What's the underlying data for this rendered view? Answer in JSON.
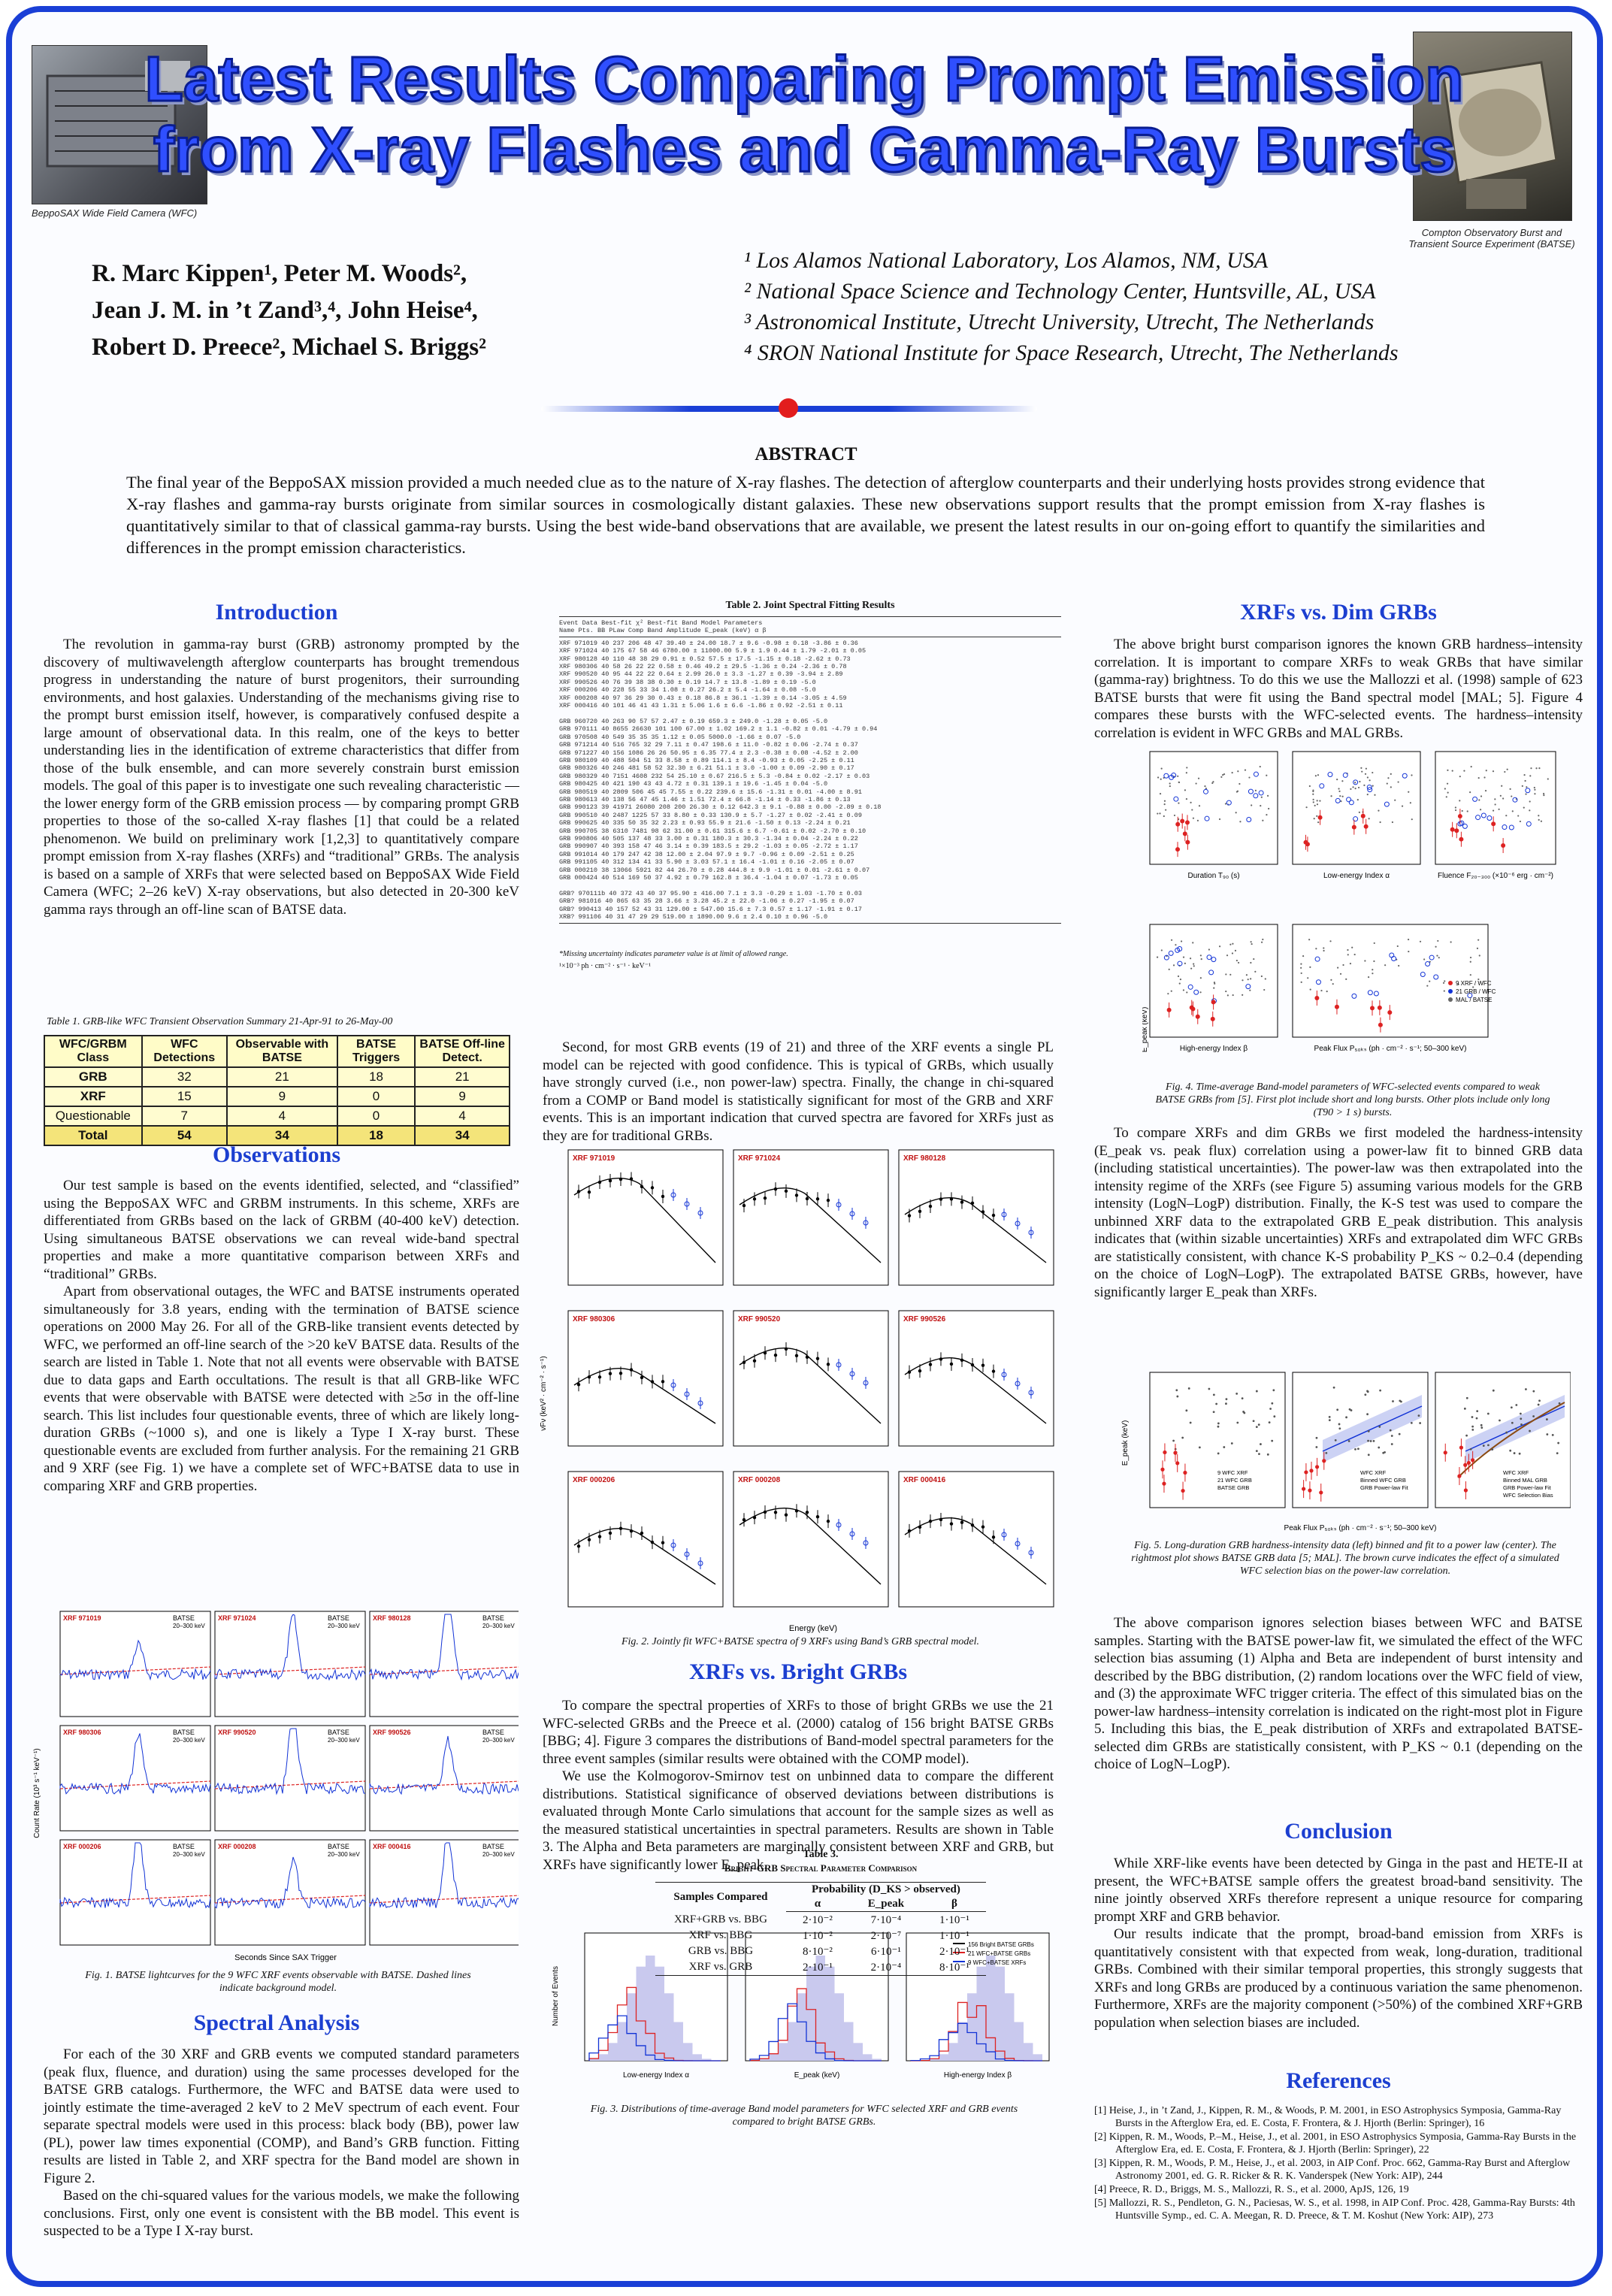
{
  "title": {
    "line1": "Latest Results Comparing Prompt Emission",
    "line2": "from X-ray Flashes and Gamma-Ray Bursts"
  },
  "photos": {
    "left_caption_em": "Beppo",
    "left_caption": "SAX Wide Field Camera (WFC)",
    "right_caption_em": "Compton",
    "right_caption": " Observatory Burst and Transient Source Experiment (BATSE)"
  },
  "authors": {
    "line1": "R. Marc Kippen¹,  Peter M. Woods²,",
    "line2": "Jean J. M. in ’t Zand³,⁴,  John Heise⁴,",
    "line3": "Robert D. Preece²,  Michael S. Briggs²"
  },
  "affiliations": [
    "¹ Los Alamos National Laboratory, Los Alamos, NM, USA",
    "² National Space Science and Technology Center, Huntsville, AL, USA",
    "³ Astronomical Institute, Utrecht University, Utrecht, The Netherlands",
    "⁴ SRON National Institute for Space Research, Utrecht, The Netherlands"
  ],
  "abstract": {
    "heading": "ABSTRACT",
    "text": "The final year of the BeppoSAX mission provided a much needed clue as to the nature of X-ray flashes.  The detection of afterglow counterparts and their underlying hosts provides strong evidence that X-ray flashes and gamma-ray bursts originate from similar sources in cosmologically distant galaxies.  These new observations support results that the prompt emission from X-ray flashes is quantitatively similar to that of classical gamma-ray bursts.  Using the best wide-band observations that are available, we present the latest results in our on-going effort to quantify the similarities and differences in the prompt emission characteristics."
  },
  "introduction": {
    "heading": "Introduction",
    "text": "The revolution in gamma-ray burst (GRB) astronomy prompted by the discovery of multiwavelength afterglow counterparts has brought tremendous progress in understanding the nature of burst progenitors, their surrounding environments, and host galaxies.   Understanding of the mechanisms giving rise to the prompt burst emission itself, however, is comparatively confused despite a large amount of observational data.  In this realm, one of the keys to better understanding lies in the identification of extreme characteristics that differ from those of the bulk ensemble, and can more severely constrain burst emission models.  The goal of this paper is to investigate one such revealing characteristic — the lower energy form of the GRB emission process — by comparing prompt GRB properties to those of the so-called X-ray flashes [1] that could be a related phenomenon. We build on preliminary work [1,2,3] to quantitatively compare prompt emission from X-ray flashes (XRFs) and “traditional” GRBs.  The analysis is based on a sample of XRFs that were selected based on BeppoSAX Wide Field Camera (WFC; 2–26 keV) X-ray observations, but also detected in 20-300 keV gamma rays through an off-line scan of BATSE data."
  },
  "table1": {
    "caption": "Table 1.  GRB-like WFC Transient Observation Summary 21-Apr-91 to 26-May-00",
    "headers": [
      "WFC/GRBM Class",
      "WFC Detections",
      "Observable with BATSE",
      "BATSE Triggers",
      "BATSE Off-line Detect."
    ],
    "rows": [
      [
        "GRB",
        "32",
        "21",
        "18",
        "21"
      ],
      [
        "XRF",
        "15",
        "9",
        "0",
        "9"
      ],
      [
        "Questionable",
        "7",
        "4",
        "0",
        "4"
      ]
    ],
    "total": [
      "Total",
      "54",
      "34",
      "18",
      "34"
    ]
  },
  "observations": {
    "heading": "Observations",
    "p1": "Our test sample is based on the events identified, selected, and “classified” using the BeppoSAX WFC and GRBM instruments.  In this scheme, XRFs are differentiated from GRBs based on the lack of GRBM (40-400 keV) detection.  Using simultaneous BATSE observations we can reveal wide-band spectral properties and make a more quantitative comparison between XRFs and “traditional” GRBs.",
    "p2": "Apart from observational outages, the WFC and BATSE instruments operated simultaneously for 3.8 years, ending with the termination of BATSE science operations on 2000 May 26.  For all of the GRB-like transient events detected by WFC, we performed an off-line search of the >20 keV BATSE data.  Results of the search are listed in Table 1.  Note that not all events were observable with BATSE due to data gaps and Earth occultations.   The result is that all GRB-like WFC events that were observable with BATSE were detected with ≥5σ in the off-line search.  This list includes four questionable events, three of which are likely long-duration GRBs (~1000 s), and one is likely a Type I X-ray burst.  These questionable events are excluded from further analysis.  For the remaining 21 GRB and 9 XRF (see Fig. 1) we have a complete set of WFC+BATSE data to use in comparing XRF and GRB properties."
  },
  "fig1": {
    "events": [
      "XRF 971019",
      "XRF 971024",
      "XRF 980128",
      "XRF 980306",
      "XRF 990520",
      "XRF 990526",
      "XRF 000206",
      "XRF 000208",
      "XRF 000416"
    ],
    "batse": "BATSE",
    "band": "20–300 keV",
    "ylabel": "Count Rate (10³ s⁻¹ keV⁻¹)",
    "xlabel": "Seconds Since SAX Trigger",
    "caption": "Fig. 1.  BATSE lightcurves for the 9 WFC XRF events observable with BATSE. Dashed lines indicate background model."
  },
  "spectral": {
    "heading": "Spectral Analysis",
    "p1": "For each of the 30 XRF and GRB events we computed standard parameters (peak flux, fluence, and duration) using the same processes developed for the BATSE GRB catalogs.  Furthermore, the WFC and BATSE data were used to jointly estimate the time-averaged 2 keV to 2 MeV spectrum of each event.  Four separate spectral models were used in this process:  black body (BB), power law (PL), power law times exponential (COMP), and Band’s GRB function.  Fitting results are listed in Table 2, and XRF spectra for the Band model are shown in Figure 2.",
    "p2": "Based on the chi-squared values for the various models, we make the following conclusions.  First, only one event is consistent with the BB model.  This event is suspected to be a Type I X-ray burst."
  },
  "table2": {
    "title": "Table 2.  Joint Spectral Fitting Results",
    "header1": "Event   Data        Best-fit χ²            Best-fit Band Model Parameters",
    "header2": "Name    Pts.   BB   PLaw  Comp  Band   Amplitude    E_peak (keV)      α          β",
    "rows": [
      "XRF 971019   40   237   206    48    47    39.40 ±  24.00    18.7 ±   9.6   -0.98 ± 0.18   -3.86 ± 0.36",
      "XRF 971024   40   175    67    58    46   6780.00 ± 11000.00  5.9 ±   1.9    0.44 ± 1.79   -2.01 ± 0.05",
      "XRF 980128   40   110    48    38    29     0.91 ±   0.52    57.5 ±  17.5   -1.15 ± 0.18   -2.62 ± 0.73",
      "XRF 980306   40    58    26    22    22     0.58 ±   0.46    49.2 ±  29.5   -1.36 ± 0.24   -2.36 ± 0.78",
      "XRF 990520   40    95    44    22    22     0.64 ±   2.99    26.0 ±   3.3   -1.27 ± 0.39   -3.94 ± 2.89",
      "XRF 990526   40    76    39    38    38     0.30 ±   0.19    14.7 ±  13.8   -1.89 ± 0.19     -5.0",
      "XRF 000206   40   228    55    33    34     1.08 ±   0.27    26.2 ±   5.4   -1.64 ± 0.08     -5.0",
      "XRF 000208   40    97    36    29    30     0.43 ±   0.18    86.8 ±  36.1   -1.39 ± 0.14   -3.05 ± 4.59",
      "XRF 000416   40   101    46    41    43     1.31 ±   5.06     1.6 ±   6.6   -1.86 ± 0.92   -2.51 ± 0.11",
      "",
      "GRB 960720   40   263    90    57    57     2.47 ±   0.19   659.3 ± 249.0   -1.28 ± 0.05     -5.0",
      "GRB 970111   40  8655 26630   101   100    67.00 ±   1.02   169.2 ±   1.1   -0.82 ± 0.01   -4.79 ± 0.94",
      "GRB 970508   40   549    35    35    35     1.12 ±   0.05   5000.0           -1.66 ± 0.07     -5.0",
      "GRB 971214   40   516    765    32    29     7.11 ±   0.47   198.6 ±  11.0   -0.82 ± 0.06   -2.74 ± 0.37",
      "GRB 971227   40   156    1086    26    26    50.95 ±   6.35    77.4 ±   2.3   -0.38 ± 0.08   -4.52 ± 2.00",
      "GRB 980109   40   488    504    51    33     8.58 ±   0.89   114.1 ±   8.4   -0.93 ± 0.05   -2.25 ± 0.11",
      "GRB 980326   40   246    481    58    52    32.30 ±   6.21    51.1 ±   3.0   -1.00 ± 0.09   -2.90 ± 0.17",
      "GRB 980329   40  7151   4608   232    54    25.10 ±   0.67   216.5 ±   5.3   -0.84 ± 0.02   -2.17 ± 0.03",
      "GRB 980425   40   421    190    43    43     4.72 ±   0.31   139.1 ±  19.6   -1.45 ± 0.04     -5.0",
      "GRB 980519   40  2809    506    45    45     7.55 ±   0.22   239.6 ±  15.6   -1.31 ± 0.01   -4.00 ± 8.91",
      "GRB 980613   40   138     56    47    45     1.46 ±   1.51    72.4 ±  66.8   -1.14 ± 0.33   -1.86 ± 0.13",
      "GRB 990123   39 41971  26080   208   200    26.30 ±   0.12   642.3 ±   9.1   -0.88 ± 0.00   -2.89 ± 0.18",
      "GRB 990510   40  2487   1225    57    33     8.80 ±   0.33   130.9 ±   5.7   -1.27 ± 0.02   -2.41 ± 0.09",
      "GRB 990625   40   335     50    35    32     2.23 ±   0.93    55.9 ±  21.6   -1.50 ± 0.13   -2.24 ± 0.21",
      "GRB 990705   38  6310   7481    98    62    31.00 ±   0.61   315.6 ±   6.7   -0.61 ± 0.02   -2.70 ± 0.10",
      "GRB 990806   40   505    137    48    33     3.00 ±   0.31   180.3 ±  30.3   -1.34 ± 0.04   -2.24 ± 0.22",
      "GRB 990907   40   393    158    47    46     3.14 ±   0.39   183.5 ±  29.2   -1.03 ± 0.05   -2.72 ± 1.17",
      "GRB 991014   40   179    247    42    38    12.00 ±   2.04    97.9 ±   9.7   -0.96 ± 0.09   -2.51 ± 0.25",
      "GRB 991105   40   312    134    41    33     5.90 ±   3.03    57.1 ±  16.4   -1.01 ± 0.16   -2.05 ± 0.07",
      "GRB 000210   38 13066   5921    82    44    26.70 ±   0.28   444.8 ±   9.9   -1.01 ± 0.01   -2.61 ± 0.07",
      "GRB 000424   40   514    169    50    37     4.92 ±   0.79   162.8 ±  36.4   -1.04 ± 0.07   -1.73 ± 0.05",
      "",
      "GRB? 970111b  40   372    43    40    37    95.90 ± 416.00     7.1 ±   3.3   -0.29 ± 1.03   -1.70 ± 0.03",
      "GRB? 981016   40   865    63    35    28     3.66 ±   3.28    45.2 ±  22.0   -1.06 ± 0.27   -1.95 ± 0.07",
      "GRB? 990413   40   157    52    43    31   129.00 ± 547.00    15.6 ±   7.3    0.57 ± 1.17   -1.91 ± 0.17",
      "XRB? 991106   40    31    47    29    29   519.00 ± 1890.00     9.6 ±   2.4    0.10 ± 0.96     -5.0"
    ],
    "note1": "*Missing uncertainty indicates parameter value is at limit of allowed range.",
    "note2": "¹×10⁻³ ph · cm⁻² · s⁻¹ · keV⁻¹"
  },
  "middle_text": {
    "p1": "Second, for most GRB events (19 of 21) and three of the XRF events a single PL model can be rejected with good confidence.  This is typical of GRBs, which usually have strongly curved (i.e., non power-law) spectra.  Finally, the change in chi-squared from a COMP or Band model is statistically significant for most of the GRB and XRF events.  This is an important indication that curved spectra are favored for XRFs just as they are for traditional GRBs."
  },
  "fig2": {
    "events": [
      "XRF 971019",
      "XRF 971024",
      "XRF 980128",
      "XRF 980306",
      "XRF 990520",
      "XRF 990526",
      "XRF 000206",
      "XRF 000208",
      "XRF 000416"
    ],
    "ylabel": "νFν (keV² · cm⁻² · s⁻¹)",
    "xlabel": "Energy (keV)",
    "caption": "Fig. 2.  Jointly fit WFC+BATSE spectra of 9 XRFs using Band’s GRB spectral model."
  },
  "bright": {
    "heading": "XRFs vs. Bright GRBs",
    "p1": "To compare the spectral properties of XRFs to those of bright GRBs we use the 21 WFC-selected GRBs and the Preece et al. (2000) catalog of 156 bright BATSE GRBs [BBG; 4].  Figure 3 compares the distributions of Band-model spectral parameters for the three event samples (similar results were obtained with the COMP model).",
    "p2": "We use the Kolmogorov-Smirnov test on unbinned data to compare the different distributions.  Statistical significance of observed deviations between distributions is evaluated through Monte Carlo simulations that account for the sample sizes as well as the measured statistical uncertainties in spectral parameters.  Results are shown in Table 3.  The Alpha and Beta parameters are marginally consistent between XRF and GRB, but XRFs have significantly lower E_peak."
  },
  "fig3": {
    "ylabel": "Number of Events",
    "xlabels": [
      "Low-energy Index α",
      "E_peak (keV)",
      "High-energy Index β"
    ],
    "legend": [
      "156 Bright BATSE GRBs",
      "21 WFC+BATSE GRBs",
      "9 WFC+BATSE XRFs"
    ],
    "caption": "Fig. 3.  Distributions of time-average Band model parameters for WFC selected  XRF and GRB events compared to bright BATSE GRBs."
  },
  "table3": {
    "title": "Table 3.",
    "subtitle": "Bright-GRB Spectral Parameter Comparison",
    "col1": "Samples Compared",
    "colgroup": "Probability (D_KS > observed)",
    "cols": [
      "α",
      "E_peak",
      "β"
    ],
    "rows": [
      [
        "XRF+GRB vs. BBG",
        "2·10⁻²",
        "7·10⁻⁴",
        "1·10⁻¹"
      ],
      [
        "XRF vs. BBG",
        "1·10⁻²",
        "2·10⁻⁷",
        "1·10⁻¹"
      ],
      [
        "GRB vs. BBG",
        "8·10⁻²",
        "6·10⁻¹",
        "2·10⁻¹"
      ],
      [
        "XRF vs. GRB",
        "2·10⁻¹",
        "2·10⁻⁴",
        "8·10⁻¹"
      ]
    ]
  },
  "dim": {
    "heading": "XRFs vs. Dim GRBs",
    "p1": "The above bright burst comparison ignores the known GRB hardness–intensity correlation.  It is important to compare XRFs to weak GRBs that have similar (gamma-ray) brightness.  To do this we use the Mallozzi et al. (1998) sample of 623 BATSE bursts that were fit using the Band spectral model [MAL; 5].  Figure 4 compares these bursts with the WFC-selected events.  The hardness–intensity correlation is evident in WFC GRBs and MAL GRBs.",
    "p2": "To compare XRFs and dim GRBs we first modeled the hardness-intensity (E_peak vs. peak flux) correlation using a power-law fit to binned GRB data (including statistical uncertainties).  The power-law was then extrapolated into the intensity regime of the XRFs (see Figure 5) assuming various models for the GRB intensity (LogN–LogP) distribution.  Finally, the K-S test was used to compare the unbinned XRF data to the extrapolated GRB E_peak distribution.  This analysis indicates that (within sizable uncertainties) XRFs and extrapolated dim WFC GRBs are statistically consistent, with chance K-S probability P_KS ~ 0.2–0.4 (depending on the choice of LogN–LogP).  The extrapolated BATSE GRBs, however, have significantly larger E_peak than XRFs.",
    "p3": "The above comparison ignores selection biases between WFC and BATSE samples.  Starting with the BATSE power-law fit, we simulated the effect of the WFC selection bias assuming (1) Alpha and Beta are independent of burst intensity and described by the BBG distribution, (2) random locations over the WFC field of view, and (3) the approximate WFC trigger criteria.  The effect of this simulated bias on the power-law hardness–intensity correlation is indicated on the right-most plot in Figure 5.  Including this bias, the E_peak distribution of XRFs and extrapolated BATSE-selected dim GRBs are statistically consistent, with P_KS ~ 0.1 (depending on the choice of LogN–LogP)."
  },
  "fig4": {
    "xlabels": [
      "Duration T₉₀ (s)",
      "Low-energy Index α",
      "Fluence F₂₀₋₃₀₀ (×10⁻⁶ erg · cm⁻²)",
      "High-energy Index β",
      "Peak Flux P₅₀ₖₛ (ph · cm⁻² · s⁻¹; 50–300 keV)"
    ],
    "ylabel": "E_peak (keV)",
    "legend": [
      "9 XRF / WFC",
      "21 GRB / WFC",
      "MAL / BATSE"
    ],
    "caption": "Fig. 4.  Time-average Band-model parameters of WFC-selected events compared to weak BATSE GRBs from [5].  First plot include short and long bursts.  Other plots include only long (T90 > 1 s) bursts."
  },
  "fig5": {
    "ylabel": "E_peak (keV)",
    "xlabel": "Peak Flux P₅₀ₖₛ (ph · cm⁻² · s⁻¹; 50–300 keV)",
    "legend1": [
      "9 WFC XRF",
      "21 WFC GRB",
      "BATSE GRB"
    ],
    "legend2": [
      "WFC XRF",
      "Binned WFC GRB",
      "GRB Power-law Fit"
    ],
    "legend3": [
      "WFC XRF",
      "Binned MAL GRB",
      "GRB Power-law Fit",
      "WFC Selection Bias"
    ],
    "caption": "Fig. 5.  Long-duration GRB hardness-intensity  data (left)  binned and fit to a power law (center).  The rightmost plot shows BATSE GRB data [5; MAL].  The brown curve indicates the effect of a simulated WFC selection bias on the power-law correlation."
  },
  "conclusion": {
    "heading": "Conclusion",
    "p1": "While XRF-like events have been detected by Ginga in the past and HETE-II at present, the WFC+BATSE sample offers the greatest broad-band sensitivity.  The nine jointly observed XRFs therefore represent a unique resource for comparing prompt XRF and GRB behavior.",
    "p2": "Our results indicate that the prompt, broad-band emission from XRFs is quantitatively consistent with that expected from weak, long-duration, traditional GRBs.  Combined with their similar temporal properties, this strongly suggests that XRFs and long GRBs are produced by a continuous variation the same phenomenon.  Furthermore, XRFs are the majority component (>50%) of the combined XRF+GRB population when selection biases are included."
  },
  "references": {
    "heading": "References",
    "items": [
      "[1]   Heise, J., in ’t Zand, J., Kippen, R. M.,  & Woods, P. M. 2001, in ESO Astrophysics Symposia, Gamma-Ray Bursts in the Afterglow Era, ed. E. Costa, F. Frontera, & J. Hjorth (Berlin: Springer), 16",
      "[2]   Kippen, R. M., Woods, P.–M., Heise, J., et al. 2001, in ESO Astrophysics Symposia, Gamma-Ray Bursts in the Afterglow Era, ed. E. Costa, F. Frontera, & J. Hjorth (Berlin: Springer), 22",
      "[3]   Kippen, R. M., Woods, P. M., Heise, J., et al. 2003, in AIP Conf. Proc. 662, Gamma-Ray Burst and Afterglow Astronomy 2001, ed. G. R. Ricker & R. K. Vanderspek (New York: AIP), 244",
      "[4]   Preece, R. D., Briggs, M. S., Mallozzi, R. S., et al. 2000, ApJS, 126, 19",
      "[5]   Mallozzi, R. S., Pendleton, G. N., Paciesas, W. S., et al. 1998, in AIP Conf. Proc. 428, Gamma-Ray Bursts: 4th Huntsville Symp., ed. C. A. Meegan, R. D. Preece, & T. M. Koshut (New York: AIP), 273"
    ]
  },
  "colors": {
    "frame": "#1a3fd6",
    "title": "#2f4fff",
    "heading": "#1c3fd0",
    "table_bg": "#fffcd0",
    "total_bg": "#f4e47a",
    "accent_red": "#e21d1d"
  }
}
